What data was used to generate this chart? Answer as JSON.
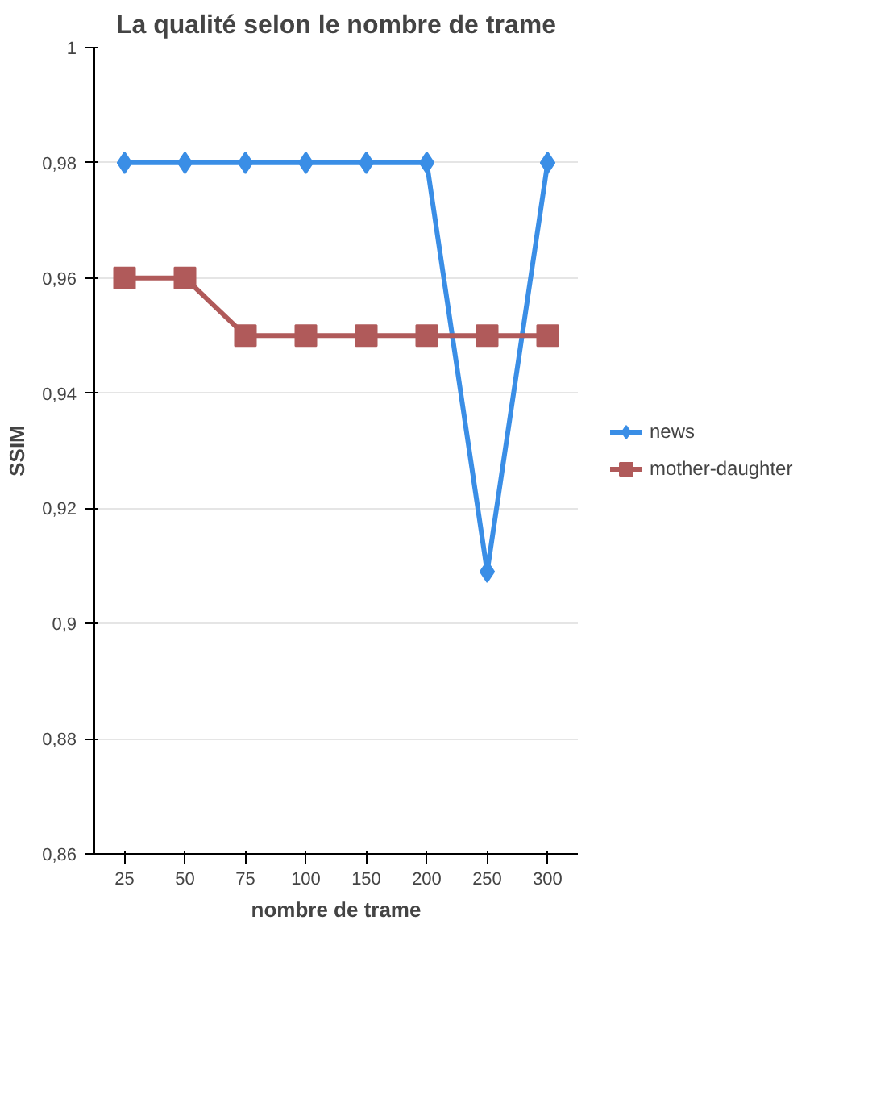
{
  "chart_data": {
    "type": "line",
    "title": "La qualité selon le nombre de trame",
    "xlabel": "nombre de trame",
    "ylabel": "SSIM",
    "categories": [
      "25",
      "50",
      "75",
      "100",
      "150",
      "200",
      "250",
      "300"
    ],
    "series": [
      {
        "name": "news",
        "color": "#3a8ee6",
        "marker": "diamond",
        "values": [
          0.98,
          0.98,
          0.98,
          0.98,
          0.98,
          0.98,
          0.909,
          0.98
        ]
      },
      {
        "name": "mother-daughter",
        "color": "#b05a5a",
        "marker": "square",
        "values": [
          0.96,
          0.96,
          0.95,
          0.95,
          0.95,
          0.95,
          0.95,
          0.95
        ]
      }
    ],
    "ylim": [
      0.86,
      1
    ],
    "yticks": [
      {
        "value": 0.86,
        "label": "0,86"
      },
      {
        "value": 0.88,
        "label": "0,88"
      },
      {
        "value": 0.9,
        "label": "0,9"
      },
      {
        "value": 0.92,
        "label": "0,92"
      },
      {
        "value": 0.94,
        "label": "0,94"
      },
      {
        "value": 0.96,
        "label": "0,96"
      },
      {
        "value": 0.98,
        "label": "0,98"
      },
      {
        "value": 1,
        "label": "1"
      }
    ],
    "grid": "y",
    "legend": "right"
  }
}
